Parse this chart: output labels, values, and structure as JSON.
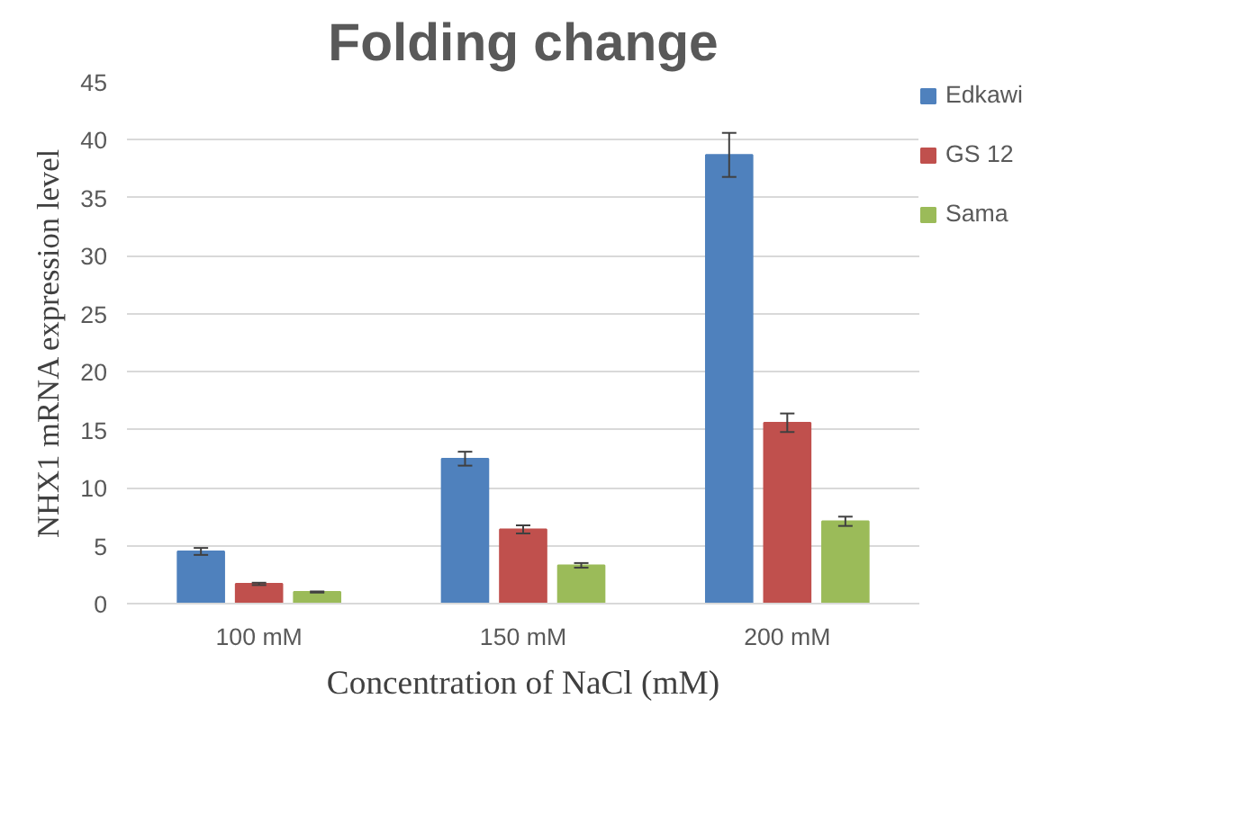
{
  "chart_data": {
    "type": "bar",
    "title": "Folding change",
    "xlabel": "Concentration of NaCl (mM)",
    "ylabel": "NHX1 mRNA expression level",
    "categories": [
      "100 mM",
      "150 mM",
      "200 mM"
    ],
    "series": [
      {
        "name": "Edkawi",
        "color": "#4f81bd",
        "values": [
          4.5,
          12.5,
          38.7
        ],
        "errors": [
          0.3,
          0.6,
          1.9
        ]
      },
      {
        "name": "GS 12",
        "color": "#c0504d",
        "values": [
          1.7,
          6.4,
          15.6
        ],
        "errors": [
          0.1,
          0.35,
          0.8
        ]
      },
      {
        "name": "Sama",
        "color": "#9bbb59",
        "values": [
          1.0,
          3.3,
          7.1
        ],
        "errors": [
          0.05,
          0.2,
          0.4
        ]
      }
    ],
    "ylim": [
      0,
      45
    ],
    "yticks": [
      0,
      5,
      10,
      15,
      20,
      25,
      30,
      35,
      40,
      45
    ],
    "grid": "y",
    "legend": "right"
  }
}
